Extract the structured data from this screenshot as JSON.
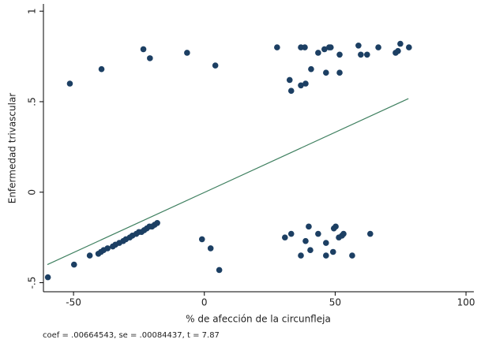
{
  "chart_data": {
    "type": "scatter",
    "x_label": "% de afección de la circunfleja",
    "y_label": "Enfermedad trivascular",
    "note": "coef = .00664543, se = .00084437, t = 7.87",
    "xlim": [
      -61.5,
      103
    ],
    "ylim": [
      -0.55,
      1.04
    ],
    "xticks": [
      -50,
      0,
      50,
      100
    ],
    "yticks": [
      {
        "value": -0.5,
        "label": "-.5"
      },
      0,
      {
        "value": 0.5,
        "label": ".5"
      },
      1
    ],
    "grid": false,
    "points": {
      "color": "#1c3f63",
      "x": [
        -51.4,
        -39.3,
        -23.3,
        -20.8,
        -6.6,
        4.2,
        27.8,
        36.9,
        38.4,
        32.6,
        33.2,
        36.9,
        38.7,
        40.8,
        43.5,
        45.9,
        47.7,
        48.3,
        46.5,
        51.7,
        51.7,
        58.9,
        59.8,
        62.2,
        66.5,
        73.1,
        74,
        74.9,
        78.2,
        -0.9,
        2.4,
        5.7,
        30.8,
        33.2,
        36.9,
        38.7,
        39.9,
        40.5,
        43.5,
        46.5,
        46.5,
        49.2,
        49.5,
        50.2,
        51.4,
        52.6,
        53.2,
        56.5,
        63.4,
        -59.8,
        -49.8,
        -43.8,
        -40.5,
        -39.5,
        -38.5,
        -37,
        -35,
        -34,
        -32.5,
        -31,
        -30,
        -28.5,
        -27.5,
        -26,
        -25,
        -24,
        -23,
        -22,
        -21,
        -20,
        -19,
        -18
      ],
      "values": [
        0.6,
        0.68,
        0.79,
        0.74,
        0.77,
        0.7,
        0.8,
        0.8,
        0.8,
        0.62,
        0.56,
        0.59,
        0.6,
        0.68,
        0.77,
        0.79,
        0.8,
        0.8,
        0.66,
        0.76,
        0.66,
        0.81,
        0.76,
        0.76,
        0.8,
        0.77,
        0.78,
        0.82,
        0.8,
        -0.26,
        -0.31,
        -0.43,
        -0.25,
        -0.23,
        -0.35,
        -0.27,
        -0.19,
        -0.32,
        -0.23,
        -0.28,
        -0.35,
        -0.33,
        -0.2,
        -0.19,
        -0.25,
        -0.24,
        -0.23,
        -0.35,
        -0.23,
        -0.47,
        -0.4,
        -0.35,
        -0.34,
        -0.33,
        -0.32,
        -0.31,
        -0.3,
        -0.29,
        -0.28,
        -0.27,
        -0.26,
        -0.25,
        -0.24,
        -0.23,
        -0.22,
        -0.22,
        -0.21,
        -0.2,
        -0.19,
        -0.19,
        -0.18,
        -0.17
      ]
    },
    "fit_line": {
      "color": "#3f8060",
      "x": [
        -60,
        78
      ],
      "values": [
        -0.4,
        0.517
      ]
    }
  }
}
